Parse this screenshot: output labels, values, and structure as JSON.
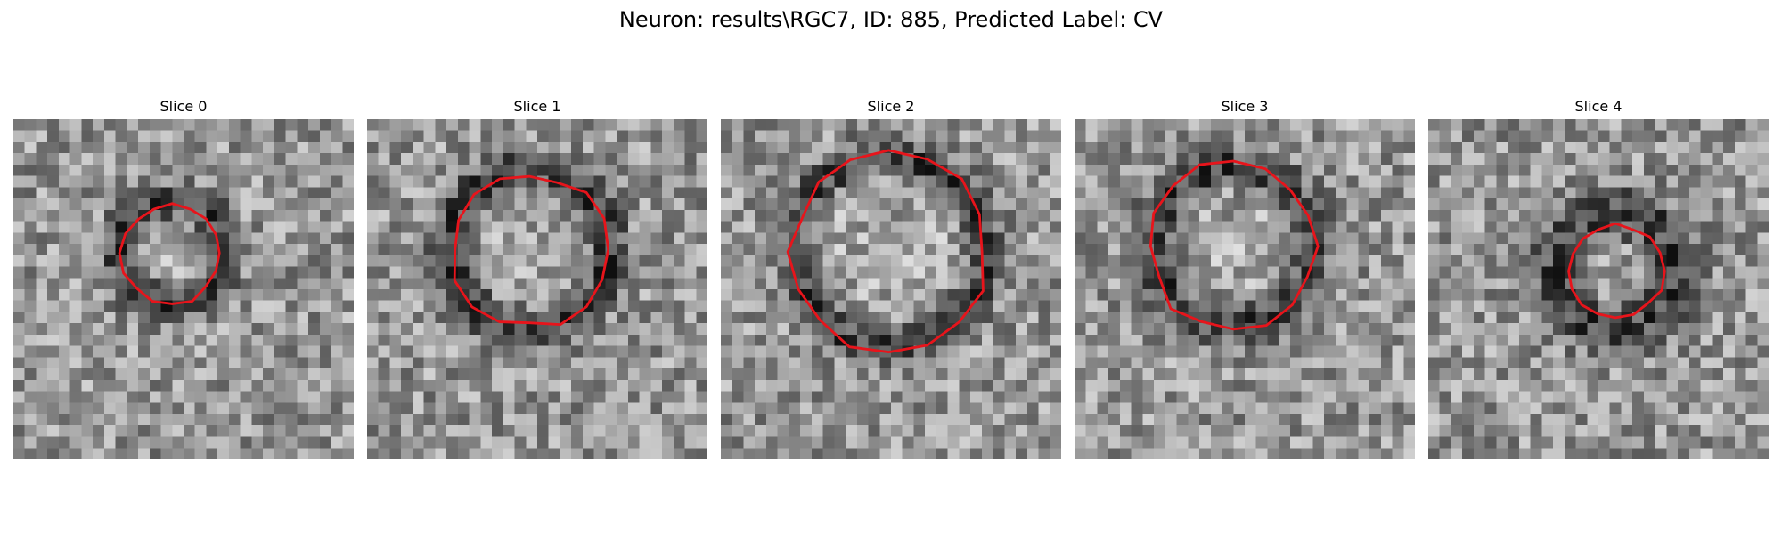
{
  "figure": {
    "title": "Neuron: results\\RGC7, ID: 885, Predicted Label: CV",
    "panels": [
      {
        "title": "Slice 0",
        "ring": "dark",
        "outline_scale": 0.8
      },
      {
        "title": "Slice 1",
        "ring": "dark",
        "outline_scale": 1.05
      },
      {
        "title": "Slice 2",
        "ring": "dark",
        "outline_scale": 1.3
      },
      {
        "title": "Slice 3",
        "ring": "dark",
        "outline_scale": 1.1
      },
      {
        "title": "Slice 4",
        "ring": "dark",
        "outline_scale": 0.7
      }
    ],
    "outline_color": "#e8141b",
    "colormap": "grayscale"
  }
}
